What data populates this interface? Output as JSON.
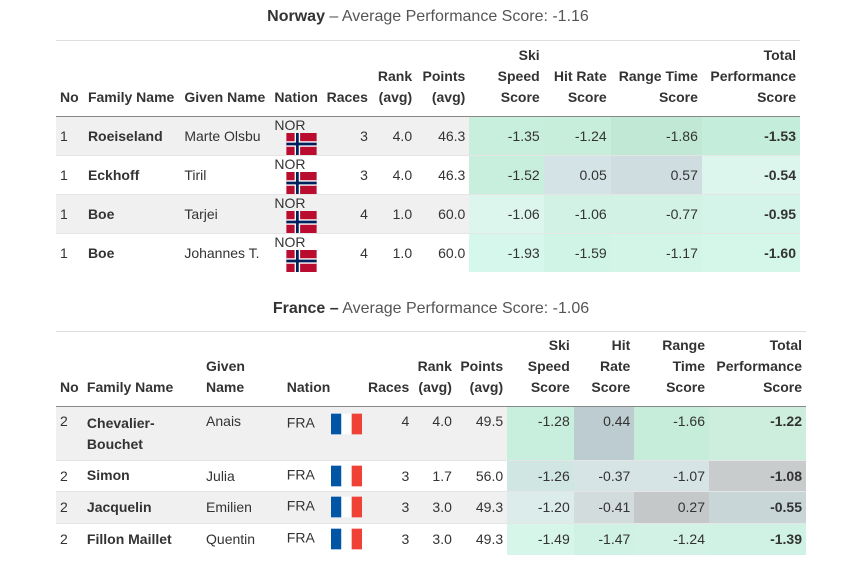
{
  "tables": [
    {
      "title_bold": "Norway",
      "title_rest": " – Average Performance Score: -1.16",
      "headers": {
        "no": "No",
        "family": "Family Name",
        "given": "Given Name",
        "nation": "Nation",
        "races": "Races",
        "rank": "Rank (avg)",
        "points": "Points (avg)",
        "ski": "Ski Speed Score",
        "hit": "Hit Rate Score",
        "range": "Range Time Score",
        "total": "Total Performance Score"
      },
      "rows": [
        {
          "no": "1",
          "family": "Roeiseland",
          "given": "Marte Olsbu",
          "nation": "NOR",
          "races": "3",
          "rank": "4.0",
          "points": "46.3",
          "ski": "-1.35",
          "hit": "-1.24",
          "range": "-1.86",
          "total": "-1.53"
        },
        {
          "no": "1",
          "family": "Eckhoff",
          "given": "Tiril",
          "nation": "NOR",
          "races": "3",
          "rank": "4.0",
          "points": "46.3",
          "ski": "-1.52",
          "hit": "0.05",
          "range": "0.57",
          "total": "-0.54"
        },
        {
          "no": "1",
          "family": "Boe",
          "given": "Tarjei",
          "nation": "NOR",
          "races": "4",
          "rank": "1.0",
          "points": "60.0",
          "ski": "-1.06",
          "hit": "-1.06",
          "range": "-0.77",
          "total": "-0.95"
        },
        {
          "no": "1",
          "family": "Boe",
          "given": "Johannes T.",
          "nation": "NOR",
          "races": "4",
          "rank": "1.0",
          "points": "60.0",
          "ski": "-1.93",
          "hit": "-1.59",
          "range": "-1.17",
          "total": "-1.60"
        }
      ],
      "cell_colors": [
        {
          "ski": "#c8eedd",
          "hit": "#c7eedb",
          "range": "#c0e8d5",
          "total": "#c4eddb"
        },
        {
          "ski": "#c8eedd",
          "hit": "#d4e3e6",
          "range": "#cfdde0",
          "total": "#dcf6ee"
        },
        {
          "ski": "#dcf6ee",
          "hit": "#d2f2e6",
          "range": "#d2f2e6",
          "total": "#d4f4e9"
        },
        {
          "ski": "#d6f8ec",
          "hit": "#d0f5e6",
          "range": "#d3f5e8",
          "total": "#d4f7ea"
        }
      ]
    },
    {
      "title_bold": "France –",
      "title_rest": " Average Performance Score: -1.06",
      "headers": {
        "no": "No",
        "family": "Family Name",
        "given": "Given Name",
        "nation": "Nation",
        "races": "Races",
        "rank": "Rank (avg)",
        "points": "Points (avg)",
        "ski": "Ski Speed Score",
        "hit": "Hit Rate Score",
        "range": "Range Time Score",
        "total": "Total Performance Score"
      },
      "rows": [
        {
          "no": "2",
          "family": "Chevalier-Bouchet",
          "given": "Anais",
          "nation": "FRA",
          "races": "4",
          "rank": "4.0",
          "points": "49.5",
          "ski": "-1.28",
          "hit": "0.44",
          "range": "-1.66",
          "total": "-1.22"
        },
        {
          "no": "2",
          "family": "Simon",
          "given": "Julia",
          "nation": "FRA",
          "races": "3",
          "rank": "1.7",
          "points": "56.0",
          "ski": "-1.26",
          "hit": "-0.37",
          "range": "-1.07",
          "total": "-1.08"
        },
        {
          "no": "2",
          "family": "Jacquelin",
          "given": "Emilien",
          "nation": "FRA",
          "races": "3",
          "rank": "3.0",
          "points": "49.3",
          "ski": "-1.20",
          "hit": "-0.41",
          "range": "0.27",
          "total": "-0.55"
        },
        {
          "no": "2",
          "family": "Fillon Maillet",
          "given": "Quentin",
          "nation": "FRA",
          "races": "3",
          "rank": "3.0",
          "points": "49.3",
          "ski": "-1.49",
          "hit": "-1.47",
          "range": "-1.24",
          "total": "-1.39"
        }
      ],
      "cell_colors": [
        {
          "ski": "#c8eedd",
          "hit": "#bcccd0",
          "range": "#c6ecda",
          "total": "#cdeedd"
        },
        {
          "ski": "#d0e6e2",
          "hit": "#d6e4e6",
          "range": "#d6e4e6",
          "total": "#c8cccc"
        },
        {
          "ski": "#dcecea",
          "hit": "#d2dcdc",
          "range": "#c4c8c8",
          "total": "#c8d6d8"
        },
        {
          "ski": "#d6f6ea",
          "hit": "#d0f2e4",
          "range": "#d2f2e6",
          "total": "#d0f2e4"
        }
      ]
    }
  ],
  "flag_icons": {
    "NOR": "norway-flag-icon",
    "FRA": "france-flag-icon"
  }
}
